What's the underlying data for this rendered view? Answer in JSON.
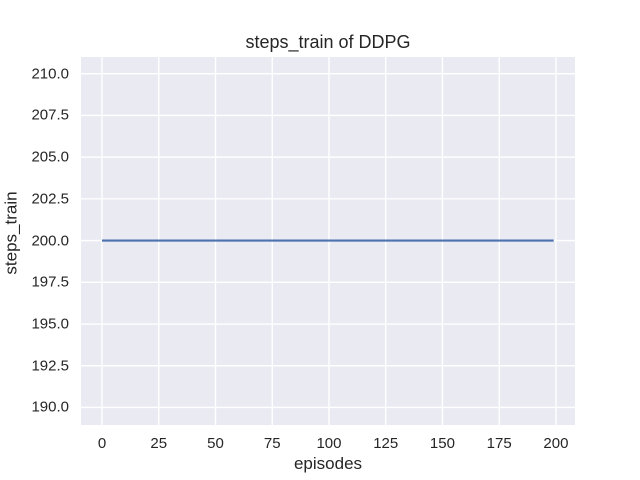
{
  "chart_data": {
    "type": "line",
    "title": "steps_train of DDPG",
    "xlabel": "episodes",
    "ylabel": "steps_train",
    "xlim": [
      -9.25,
      208.4
    ],
    "ylim": [
      188.95,
      211.0
    ],
    "grid": true,
    "legend": null,
    "xticks": [
      {
        "value": 0,
        "label": "0"
      },
      {
        "value": 25,
        "label": "25"
      },
      {
        "value": 50,
        "label": "50"
      },
      {
        "value": 75,
        "label": "75"
      },
      {
        "value": 100,
        "label": "100"
      },
      {
        "value": 125,
        "label": "125"
      },
      {
        "value": 150,
        "label": "150"
      },
      {
        "value": 175,
        "label": "175"
      },
      {
        "value": 200,
        "label": "200"
      }
    ],
    "yticks": [
      {
        "value": 190.0,
        "label": "190.0"
      },
      {
        "value": 192.5,
        "label": "192.5"
      },
      {
        "value": 195.0,
        "label": "195.0"
      },
      {
        "value": 197.5,
        "label": "197.5"
      },
      {
        "value": 200.0,
        "label": "200.0"
      },
      {
        "value": 202.5,
        "label": "202.5"
      },
      {
        "value": 205.0,
        "label": "205.0"
      },
      {
        "value": 207.5,
        "label": "207.5"
      },
      {
        "value": 210.0,
        "label": "210.0"
      }
    ],
    "series": [
      {
        "name": "steps_train",
        "color": "#4c72b0",
        "x": [
          0,
          199
        ],
        "y": [
          200,
          200
        ],
        "note": "constant line at 200 steps per episode"
      }
    ],
    "colors": {
      "figure_background": "#ffffff",
      "axes_background": "#eaeaf2",
      "grid": "#ffffff",
      "text": "#262626",
      "line": "#4c72b0"
    }
  }
}
